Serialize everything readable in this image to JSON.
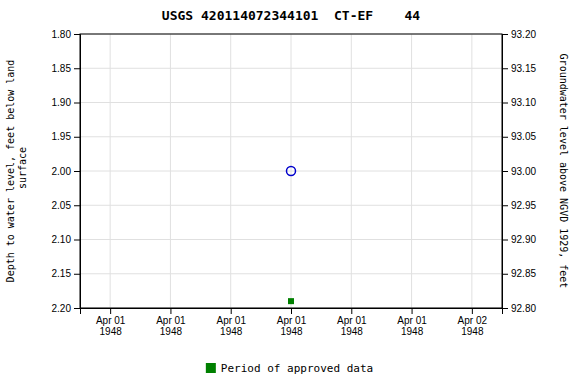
{
  "chart_data": {
    "type": "scatter",
    "title": "USGS 420114072344101  CT-EF    44",
    "ylabel": "Depth to water level, feet below land\n surface",
    "y2label": "Groundwater level above NGVD 1929, feet",
    "categories": [
      "Apr 01\n1948",
      "Apr 01\n1948",
      "Apr 01\n1948",
      "Apr 01\n1948",
      "Apr 01\n1948",
      "Apr 01\n1948",
      "Apr 02\n1948"
    ],
    "series": [
      {
        "color": "#0000cc",
        "marker": "circle-open",
        "values": [
          null,
          null,
          null,
          2.0,
          null,
          null,
          null
        ]
      },
      {
        "name": "Period of approved data",
        "color": "#008000",
        "marker": "square",
        "values": [
          null,
          null,
          null,
          2.19,
          null,
          null,
          null
        ]
      }
    ],
    "ylim": [
      2.2,
      1.8
    ],
    "yticks": [
      {
        "value": 1.8,
        "label": "1.80"
      },
      {
        "value": 1.85,
        "label": "1.85"
      },
      {
        "value": 1.9,
        "label": "1.90"
      },
      {
        "value": 1.95,
        "label": "1.95"
      },
      {
        "value": 2.0,
        "label": "2.00"
      },
      {
        "value": 2.05,
        "label": "2.05"
      },
      {
        "value": 2.1,
        "label": "2.10"
      },
      {
        "value": 2.15,
        "label": "2.15"
      },
      {
        "value": 2.2,
        "label": "2.20"
      }
    ],
    "y2lim": [
      92.8,
      93.2
    ],
    "y2ticks": [
      {
        "value": 93.2,
        "label": "93.20"
      },
      {
        "value": 93.15,
        "label": "93.15"
      },
      {
        "value": 93.1,
        "label": "93.10"
      },
      {
        "value": 93.05,
        "label": "93.05"
      },
      {
        "value": 93.0,
        "label": "93.00"
      },
      {
        "value": 92.95,
        "label": "92.95"
      },
      {
        "value": 92.9,
        "label": "92.90"
      },
      {
        "value": 92.85,
        "label": "92.85"
      },
      {
        "value": 92.8,
        "label": "92.80"
      }
    ],
    "grid": true,
    "legend": "bottom"
  }
}
